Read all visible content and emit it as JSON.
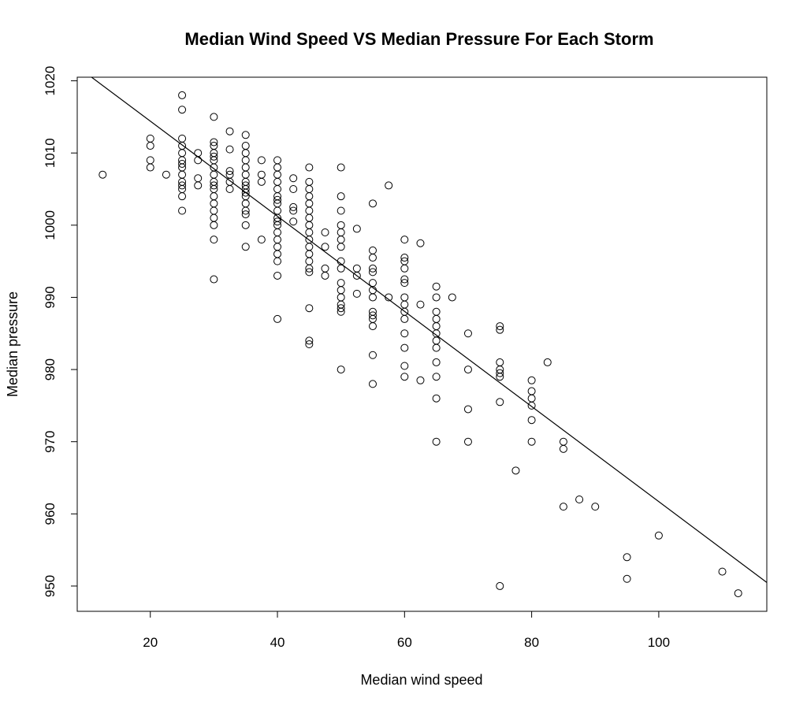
{
  "chart_data": {
    "type": "scatter",
    "title": "Median Wind Speed VS Median Pressure For Each Storm",
    "xlabel": "Median wind speed",
    "ylabel": "Median pressure",
    "xlim": [
      8.5,
      117
    ],
    "ylim": [
      946.5,
      1020.5
    ],
    "xticks": [
      20,
      40,
      60,
      80,
      100
    ],
    "yticks": [
      950,
      960,
      970,
      980,
      990,
      1000,
      1010,
      1020
    ],
    "grid": false,
    "regression_line": {
      "x": [
        10,
        117
      ],
      "y": [
        1021,
        950.5
      ]
    },
    "series": [
      {
        "points": [
          [
            12.5,
            1007
          ],
          [
            20,
            1012
          ],
          [
            20,
            1011
          ],
          [
            20,
            1009
          ],
          [
            20,
            1008
          ],
          [
            22.5,
            1007
          ],
          [
            25,
            1018
          ],
          [
            25,
            1016
          ],
          [
            25,
            1012
          ],
          [
            25,
            1011
          ],
          [
            25,
            1010
          ],
          [
            25,
            1009
          ],
          [
            25,
            1008.5
          ],
          [
            25,
            1008
          ],
          [
            25,
            1007
          ],
          [
            25,
            1006
          ],
          [
            25,
            1005.5
          ],
          [
            25,
            1005
          ],
          [
            25,
            1004
          ],
          [
            25,
            1002
          ],
          [
            27.5,
            1010
          ],
          [
            27.5,
            1009
          ],
          [
            27.5,
            1006.5
          ],
          [
            27.5,
            1005.5
          ],
          [
            30,
            1015
          ],
          [
            30,
            1011.5
          ],
          [
            30,
            1011
          ],
          [
            30,
            1010
          ],
          [
            30,
            1009.5
          ],
          [
            30,
            1009
          ],
          [
            30,
            1008
          ],
          [
            30,
            1007
          ],
          [
            30,
            1006
          ],
          [
            30,
            1005.5
          ],
          [
            30,
            1005
          ],
          [
            30,
            1004
          ],
          [
            30,
            1003
          ],
          [
            30,
            1002
          ],
          [
            30,
            1001
          ],
          [
            30,
            1000
          ],
          [
            30,
            998
          ],
          [
            30,
            992.5
          ],
          [
            32.5,
            1013
          ],
          [
            32.5,
            1010.5
          ],
          [
            32.5,
            1007.5
          ],
          [
            32.5,
            1007
          ],
          [
            32.5,
            1006
          ],
          [
            32.5,
            1005
          ],
          [
            35,
            1012.5
          ],
          [
            35,
            1011
          ],
          [
            35,
            1010
          ],
          [
            35,
            1009
          ],
          [
            35,
            1008
          ],
          [
            35,
            1007
          ],
          [
            35,
            1006
          ],
          [
            35,
            1005.5
          ],
          [
            35,
            1005
          ],
          [
            35,
            1004.5
          ],
          [
            35,
            1004
          ],
          [
            35,
            1003
          ],
          [
            35,
            1002
          ],
          [
            35,
            1001.5
          ],
          [
            35,
            1000
          ],
          [
            35,
            997
          ],
          [
            37.5,
            1009
          ],
          [
            37.5,
            1007
          ],
          [
            37.5,
            1006
          ],
          [
            37.5,
            998
          ],
          [
            40,
            1009
          ],
          [
            40,
            1008
          ],
          [
            40,
            1007
          ],
          [
            40,
            1006
          ],
          [
            40,
            1005
          ],
          [
            40,
            1004
          ],
          [
            40,
            1003.5
          ],
          [
            40,
            1003
          ],
          [
            40,
            1002
          ],
          [
            40,
            1001
          ],
          [
            40,
            1000.5
          ],
          [
            40,
            1000
          ],
          [
            40,
            999
          ],
          [
            40,
            998
          ],
          [
            40,
            997
          ],
          [
            40,
            996
          ],
          [
            40,
            995
          ],
          [
            40,
            993
          ],
          [
            40,
            987
          ],
          [
            42.5,
            1006.5
          ],
          [
            42.5,
            1005
          ],
          [
            42.5,
            1002.5
          ],
          [
            42.5,
            1002
          ],
          [
            42.5,
            1000.5
          ],
          [
            45,
            1008
          ],
          [
            45,
            1006
          ],
          [
            45,
            1005
          ],
          [
            45,
            1004
          ],
          [
            45,
            1003
          ],
          [
            45,
            1002
          ],
          [
            45,
            1001
          ],
          [
            45,
            1000
          ],
          [
            45,
            999
          ],
          [
            45,
            998
          ],
          [
            45,
            997
          ],
          [
            45,
            996
          ],
          [
            45,
            995
          ],
          [
            45,
            994
          ],
          [
            45,
            993.5
          ],
          [
            45,
            988.5
          ],
          [
            45,
            984
          ],
          [
            45,
            983.5
          ],
          [
            47.5,
            999
          ],
          [
            47.5,
            997
          ],
          [
            47.5,
            994
          ],
          [
            47.5,
            993
          ],
          [
            50,
            1008
          ],
          [
            50,
            1004
          ],
          [
            50,
            1002
          ],
          [
            50,
            1000
          ],
          [
            50,
            999
          ],
          [
            50,
            998
          ],
          [
            50,
            997
          ],
          [
            50,
            995
          ],
          [
            50,
            994
          ],
          [
            50,
            992
          ],
          [
            50,
            991
          ],
          [
            50,
            990
          ],
          [
            50,
            989
          ],
          [
            50,
            988.5
          ],
          [
            50,
            988
          ],
          [
            50,
            980
          ],
          [
            52.5,
            999.5
          ],
          [
            52.5,
            994
          ],
          [
            52.5,
            993
          ],
          [
            52.5,
            990.5
          ],
          [
            55,
            1003
          ],
          [
            55,
            996.5
          ],
          [
            55,
            995.5
          ],
          [
            55,
            994
          ],
          [
            55,
            993.5
          ],
          [
            55,
            992
          ],
          [
            55,
            991
          ],
          [
            55,
            990
          ],
          [
            55,
            988
          ],
          [
            55,
            987.5
          ],
          [
            55,
            987
          ],
          [
            55,
            986
          ],
          [
            55,
            982
          ],
          [
            55,
            978
          ],
          [
            57.5,
            1005.5
          ],
          [
            57.5,
            990
          ],
          [
            60,
            998
          ],
          [
            60,
            995.5
          ],
          [
            60,
            995
          ],
          [
            60,
            994
          ],
          [
            60,
            992.5
          ],
          [
            60,
            992
          ],
          [
            60,
            990
          ],
          [
            60,
            989
          ],
          [
            60,
            988
          ],
          [
            60,
            987
          ],
          [
            60,
            985
          ],
          [
            60,
            983
          ],
          [
            60,
            980.5
          ],
          [
            60,
            979
          ],
          [
            62.5,
            997.5
          ],
          [
            62.5,
            989
          ],
          [
            62.5,
            978.5
          ],
          [
            65,
            991.5
          ],
          [
            65,
            990
          ],
          [
            65,
            988
          ],
          [
            65,
            987
          ],
          [
            65,
            986
          ],
          [
            65,
            985
          ],
          [
            65,
            984
          ],
          [
            65,
            983
          ],
          [
            65,
            981
          ],
          [
            65,
            979
          ],
          [
            65,
            976
          ],
          [
            65,
            970
          ],
          [
            67.5,
            990
          ],
          [
            70,
            985
          ],
          [
            70,
            980
          ],
          [
            70,
            974.5
          ],
          [
            70,
            970
          ],
          [
            75,
            986
          ],
          [
            75,
            985.5
          ],
          [
            75,
            981
          ],
          [
            75,
            980
          ],
          [
            75,
            979.5
          ],
          [
            75,
            979
          ],
          [
            75,
            975.5
          ],
          [
            75,
            950
          ],
          [
            77.5,
            966
          ],
          [
            80,
            978.5
          ],
          [
            80,
            977
          ],
          [
            80,
            976
          ],
          [
            80,
            975
          ],
          [
            80,
            973
          ],
          [
            80,
            970
          ],
          [
            82.5,
            981
          ],
          [
            85,
            970
          ],
          [
            85,
            969
          ],
          [
            85,
            961
          ],
          [
            87.5,
            962
          ],
          [
            90,
            961
          ],
          [
            95,
            954
          ],
          [
            95,
            951
          ],
          [
            100,
            957
          ],
          [
            110,
            952
          ],
          [
            112.5,
            949
          ]
        ]
      }
    ]
  }
}
